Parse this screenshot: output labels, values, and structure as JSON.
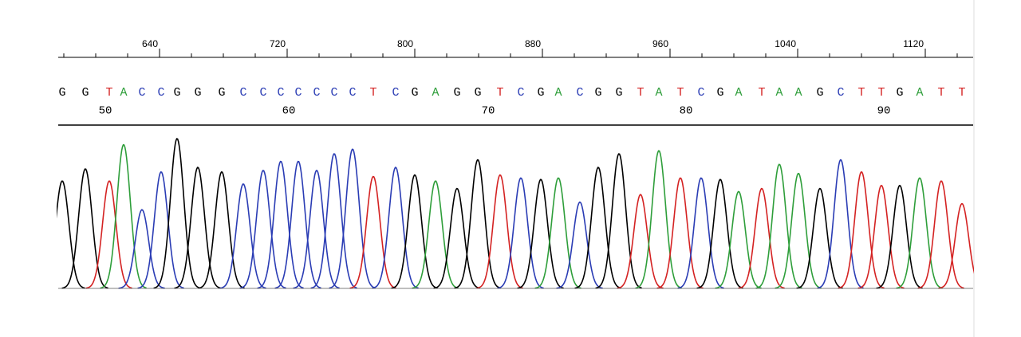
{
  "chart_data": {
    "type": "chromatogram",
    "xlim": [
      576.5,
      1149
    ],
    "xticks": [
      640,
      720,
      800,
      880,
      960,
      1040,
      1120
    ],
    "minor_ticks": [
      580,
      600,
      620,
      660,
      680,
      700,
      740,
      760,
      780,
      820,
      840,
      860,
      900,
      920,
      940,
      980,
      1000,
      1020,
      1060,
      1080,
      1100,
      1140
    ],
    "ylim": [
      0,
      100
    ],
    "bases": [
      "G",
      "G",
      "T",
      "A",
      "C",
      "C",
      "G",
      "G",
      "G",
      "C",
      "C",
      "C",
      "C",
      "C",
      "C",
      "C",
      "T",
      "C",
      "G",
      "A",
      "G",
      "G",
      "T",
      "C",
      "G",
      "A",
      "C",
      "G",
      "G",
      "T",
      "A",
      "T",
      "C",
      "G",
      "A",
      "T",
      "A",
      "A",
      "G",
      "C",
      "T",
      "T",
      "G",
      "A",
      "T",
      "T"
    ],
    "positions": [
      579,
      593.5,
      608.5,
      617.5,
      629,
      641,
      651,
      664,
      679,
      692.5,
      705,
      716,
      727,
      738.5,
      749.5,
      761,
      774,
      788,
      800,
      813,
      826.5,
      839.5,
      853.5,
      866.5,
      879,
      890,
      903.5,
      915,
      928,
      941.5,
      953,
      966.5,
      979.5,
      991.5,
      1003,
      1017.5,
      1028.5,
      1040.5,
      1054,
      1067,
      1080,
      1092.5,
      1104,
      1116.5,
      1130,
      1143
    ],
    "heights": [
      71,
      79,
      71,
      95,
      52,
      77,
      99,
      80,
      77,
      69,
      78,
      84,
      84,
      78,
      89,
      92,
      74,
      80,
      75,
      71,
      66,
      85,
      75,
      73,
      72,
      73,
      57,
      80,
      89,
      62,
      91,
      73,
      73,
      72,
      64,
      66,
      82,
      76,
      66,
      85,
      77,
      68,
      68,
      73,
      71,
      56
    ],
    "base_ticks": [
      {
        "value": 606,
        "label": "50"
      },
      {
        "value": 721,
        "label": "60"
      },
      {
        "value": 846,
        "label": "70"
      },
      {
        "value": 970,
        "label": "80"
      },
      {
        "value": 1094,
        "label": "90"
      }
    ],
    "colors": {
      "G": "#000000",
      "A": "#2e9e3a",
      "C": "#2a3cb4",
      "T": "#d42222"
    }
  }
}
